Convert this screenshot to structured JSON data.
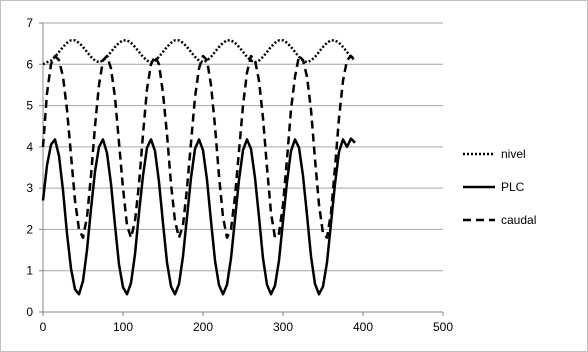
{
  "chart_data": {
    "type": "line",
    "title": "",
    "xlabel": "",
    "ylabel": "",
    "xlim": [
      0,
      500
    ],
    "ylim": [
      0,
      7
    ],
    "x_ticks": [
      "0",
      "100",
      "200",
      "300",
      "400",
      "500"
    ],
    "y_ticks": [
      "0",
      "1",
      "2",
      "3",
      "4",
      "5",
      "6",
      "7"
    ],
    "grid": "horizontal",
    "legend_position": "right",
    "series": [
      {
        "name": "nivel",
        "style": "dotted",
        "color": "#000000",
        "x": [
          0,
          5,
          10,
          15,
          20,
          25,
          30,
          35,
          40,
          45,
          50,
          55,
          60,
          65,
          70,
          75,
          80,
          85,
          90,
          95,
          100,
          105,
          110,
          115,
          120,
          125,
          130,
          135,
          140,
          145,
          150,
          155,
          160,
          165,
          170,
          175,
          180,
          185,
          190,
          195,
          200,
          205,
          210,
          215,
          220,
          225,
          230,
          235,
          240,
          245,
          250,
          255,
          260,
          265,
          270,
          275,
          280,
          285,
          290,
          295,
          300,
          305,
          310,
          315,
          320,
          325,
          330,
          335,
          340,
          345,
          350,
          355,
          360,
          365,
          370,
          375,
          380,
          385,
          390
        ],
        "y": [
          6.0,
          6.05,
          6.09,
          6.18,
          6.3,
          6.42,
          6.52,
          6.58,
          6.58,
          6.52,
          6.42,
          6.3,
          6.18,
          6.09,
          6.05,
          6.09,
          6.18,
          6.3,
          6.42,
          6.52,
          6.58,
          6.58,
          6.52,
          6.42,
          6.3,
          6.18,
          6.09,
          6.05,
          6.09,
          6.18,
          6.3,
          6.42,
          6.52,
          6.58,
          6.58,
          6.52,
          6.42,
          6.3,
          6.18,
          6.09,
          6.05,
          6.09,
          6.18,
          6.3,
          6.42,
          6.52,
          6.58,
          6.58,
          6.52,
          6.42,
          6.3,
          6.18,
          6.09,
          6.05,
          6.09,
          6.18,
          6.3,
          6.42,
          6.52,
          6.58,
          6.58,
          6.52,
          6.42,
          6.3,
          6.18,
          6.09,
          6.05,
          6.09,
          6.18,
          6.3,
          6.42,
          6.52,
          6.58,
          6.58,
          6.52,
          6.42,
          6.3,
          6.18,
          6.09
        ]
      },
      {
        "name": "PLC",
        "style": "solid",
        "color": "#000000",
        "x": [
          0,
          5,
          10,
          15,
          20,
          25,
          30,
          35,
          40,
          45,
          50,
          55,
          60,
          65,
          70,
          75,
          80,
          85,
          90,
          95,
          100,
          105,
          110,
          115,
          120,
          125,
          130,
          135,
          140,
          145,
          150,
          155,
          160,
          165,
          170,
          175,
          180,
          185,
          190,
          195,
          200,
          205,
          210,
          215,
          220,
          225,
          230,
          235,
          240,
          245,
          250,
          255,
          260,
          265,
          270,
          275,
          280,
          285,
          290,
          295,
          300,
          305,
          310,
          315,
          320,
          325,
          330,
          335,
          340,
          345,
          350,
          355,
          360,
          365,
          370,
          375,
          380,
          385,
          390
        ],
        "y": [
          2.7,
          3.55,
          4.05,
          4.18,
          3.78,
          2.95,
          1.9,
          1.05,
          0.55,
          0.43,
          0.75,
          1.5,
          2.5,
          3.4,
          4.0,
          4.18,
          3.85,
          3.1,
          2.1,
          1.15,
          0.6,
          0.43,
          0.7,
          1.4,
          2.4,
          3.3,
          3.98,
          4.18,
          3.9,
          3.15,
          2.15,
          1.2,
          0.62,
          0.43,
          0.68,
          1.35,
          2.3,
          3.25,
          3.95,
          4.18,
          3.92,
          3.2,
          2.2,
          1.25,
          0.65,
          0.43,
          0.66,
          1.3,
          2.25,
          3.2,
          3.92,
          4.18,
          3.95,
          3.25,
          2.3,
          1.3,
          0.66,
          0.43,
          0.64,
          1.25,
          2.2,
          3.15,
          3.9,
          4.18,
          3.98,
          3.3,
          2.35,
          1.35,
          0.68,
          0.43,
          0.62,
          1.2,
          2.15,
          3.1,
          3.88,
          4.18,
          4.0,
          4.2,
          4.1
        ]
      },
      {
        "name": "caudal",
        "style": "dashed",
        "color": "#000000",
        "x": [
          0,
          5,
          10,
          15,
          20,
          25,
          30,
          35,
          40,
          45,
          50,
          55,
          60,
          65,
          70,
          75,
          80,
          85,
          90,
          95,
          100,
          105,
          110,
          115,
          120,
          125,
          130,
          135,
          140,
          145,
          150,
          155,
          160,
          165,
          170,
          175,
          180,
          185,
          190,
          195,
          200,
          205,
          210,
          215,
          220,
          225,
          230,
          235,
          240,
          245,
          250,
          255,
          260,
          265,
          270,
          275,
          280,
          285,
          290,
          295,
          300,
          305,
          310,
          315,
          320,
          325,
          330,
          335,
          340,
          345,
          350,
          355,
          360,
          365,
          370,
          375,
          380,
          385,
          390
        ],
        "y": [
          4.0,
          5.3,
          6.0,
          6.2,
          6.1,
          5.7,
          4.9,
          3.8,
          2.7,
          2.0,
          1.8,
          2.3,
          3.3,
          4.5,
          5.5,
          6.1,
          6.2,
          5.9,
          5.2,
          4.1,
          3.0,
          2.1,
          1.8,
          2.2,
          3.1,
          4.3,
          5.4,
          6.0,
          6.2,
          6.0,
          5.3,
          4.3,
          3.1,
          2.2,
          1.8,
          2.1,
          3.0,
          4.1,
          5.2,
          5.9,
          6.2,
          6.1,
          5.5,
          4.5,
          3.3,
          2.3,
          1.8,
          2.0,
          2.8,
          3.9,
          5.0,
          5.8,
          6.2,
          6.1,
          5.6,
          4.7,
          3.5,
          2.4,
          1.8,
          1.9,
          2.6,
          3.7,
          4.9,
          5.7,
          6.2,
          6.1,
          5.7,
          4.9,
          3.7,
          2.6,
          1.9,
          1.8,
          2.4,
          3.5,
          4.7,
          5.6,
          6.1,
          6.2,
          6.1
        ]
      }
    ]
  }
}
